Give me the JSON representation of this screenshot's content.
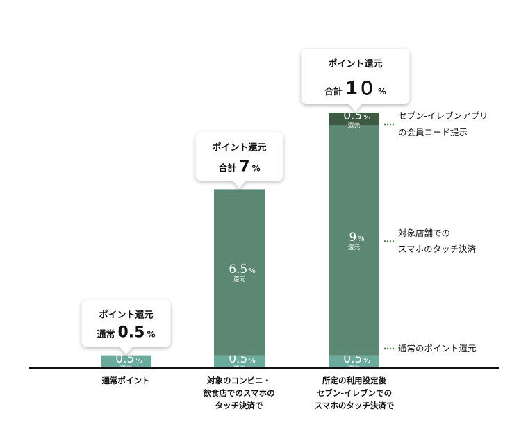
{
  "colors": {
    "base": "#6aab9c",
    "mid": "#5b8773",
    "top": "#3e5a43",
    "line": "#111111",
    "guide": "#4a7a42",
    "text": "#111111",
    "segment_text": "#ffffff"
  },
  "chart_data": {
    "type": "bar",
    "stacked": true,
    "title": "",
    "xlabel": "",
    "ylabel": "",
    "ylim": [
      0,
      10
    ],
    "grid": false,
    "legend": "right",
    "categories": [
      [
        "通常ポイント"
      ],
      [
        "対象のコンビニ・",
        "飲食店でのスマホの",
        "タッチ決済で"
      ],
      [
        "所定の利用設定後",
        "セブン-イレブンでの",
        "スマホのタッチ決済で"
      ]
    ],
    "series": [
      {
        "name": "通常のポイント還元",
        "color_key": "base",
        "values": [
          0.5,
          0.5,
          0.5
        ],
        "labels": [
          {
            "value": "0.5",
            "unit": "%",
            "sub": "還元"
          },
          {
            "value": "0.5",
            "unit": "%",
            "sub": "還元"
          },
          {
            "value": "0.5",
            "unit": "%",
            "sub": "還元"
          }
        ]
      },
      {
        "name": "対象店舗でのスマホのタッチ決済",
        "color_key": "mid",
        "values": [
          0,
          6.5,
          9
        ],
        "labels": [
          null,
          {
            "value": "6.5",
            "unit": "%",
            "sub": "還元"
          },
          {
            "value": "9",
            "unit": "%",
            "sub": "還元"
          }
        ]
      },
      {
        "name": "セブン-イレブンアプリの会員コード提示",
        "color_key": "top",
        "values": [
          0,
          0,
          0.5
        ],
        "labels": [
          null,
          null,
          {
            "value": "0.5",
            "unit": "%",
            "sub": "還元"
          }
        ]
      }
    ],
    "legend_entries": [
      {
        "lines": [
          "セブン-イレブンアプリ",
          "の会員コード提示"
        ],
        "series": 2
      },
      {
        "lines": [
          "対象店舗での",
          "スマホのタッチ決済"
        ],
        "series": 1
      },
      {
        "lines": [
          "通常のポイント還元"
        ],
        "series": 0
      }
    ],
    "callouts": [
      {
        "line1": "ポイント還元",
        "prefix": "通常",
        "value": "0.5",
        "unit": "%"
      },
      {
        "line1": "ポイント還元",
        "prefix": "合計",
        "value": "7",
        "unit": "%"
      },
      {
        "line1": "ポイント還元",
        "prefix": "合計",
        "value": "1０",
        "unit": "%"
      }
    ]
  }
}
